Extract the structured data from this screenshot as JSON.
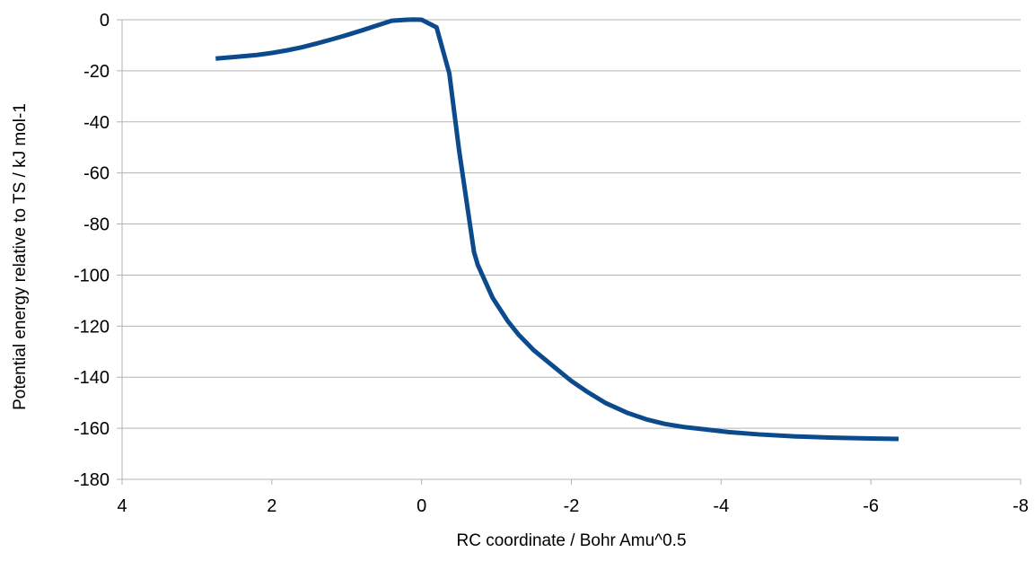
{
  "chart_data": {
    "type": "line",
    "title": "",
    "xlabel": "RC coordinate / Bohr Amu^0.5",
    "ylabel": "Potential energy relative to TS / kJ mol-1",
    "xlim": [
      4,
      -8
    ],
    "ylim": [
      -180,
      0
    ],
    "x_reversed": true,
    "x_ticks": [
      4,
      2,
      0,
      -2,
      -4,
      -6,
      -8
    ],
    "y_ticks": [
      0,
      -20,
      -40,
      -60,
      -80,
      -100,
      -120,
      -140,
      -160,
      -180
    ],
    "grid": "horizontal",
    "legend": "none",
    "series": [
      {
        "color": "#0b4a8c",
        "x": [
          2.75,
          2.5,
          2.2,
          2.0,
          1.8,
          1.6,
          1.4,
          1.2,
          1.0,
          0.8,
          0.6,
          0.4,
          0.2,
          0.1,
          0.0,
          -0.2,
          -0.37,
          -0.5,
          -0.6,
          -0.7,
          -0.75,
          -0.95,
          -1.15,
          -1.3,
          -1.5,
          -1.75,
          -2.0,
          -2.2,
          -2.45,
          -2.75,
          -3.0,
          -3.25,
          -3.5,
          -3.8,
          -4.1,
          -4.5,
          -5.0,
          -5.5,
          -6.0,
          -6.37
        ],
        "y": [
          -15.2,
          -14.6,
          -13.8,
          -13.0,
          -12.0,
          -10.8,
          -9.3,
          -7.7,
          -6.0,
          -4.2,
          -2.3,
          -0.4,
          0.0,
          0.1,
          0.0,
          -3.0,
          -21.0,
          -51.0,
          -71.0,
          -91.0,
          -96.0,
          -109.0,
          -118.0,
          -123.5,
          -129.5,
          -135.5,
          -141.5,
          -145.5,
          -150.0,
          -154.0,
          -156.5,
          -158.3,
          -159.5,
          -160.5,
          -161.5,
          -162.4,
          -163.2,
          -163.7,
          -164.0,
          -164.2
        ]
      }
    ]
  }
}
